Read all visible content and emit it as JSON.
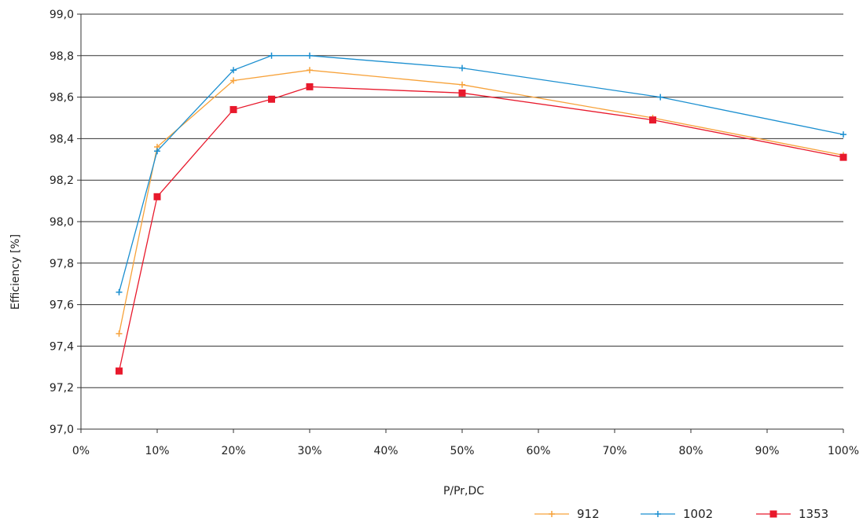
{
  "chart_data": {
    "type": "line",
    "title": "",
    "xlabel": "P/Pr,DC",
    "ylabel": "Efficiency [%]",
    "xlim": [
      0,
      1
    ],
    "ylim": [
      97.0,
      99.0
    ],
    "x_ticks": [
      {
        "value": 0.0,
        "label": "0%"
      },
      {
        "value": 0.1,
        "label": "10%"
      },
      {
        "value": 0.2,
        "label": "20%"
      },
      {
        "value": 0.3,
        "label": "30%"
      },
      {
        "value": 0.4,
        "label": "40%"
      },
      {
        "value": 0.5,
        "label": "50%"
      },
      {
        "value": 0.6,
        "label": "60%"
      },
      {
        "value": 0.7,
        "label": "70%"
      },
      {
        "value": 0.8,
        "label": "80%"
      },
      {
        "value": 0.9,
        "label": "90%"
      },
      {
        "value": 1.0,
        "label": "100%"
      }
    ],
    "y_ticks": [
      {
        "value": 97.0,
        "label": "97,0"
      },
      {
        "value": 97.2,
        "label": "97,2"
      },
      {
        "value": 97.4,
        "label": "97,4"
      },
      {
        "value": 97.6,
        "label": "97,6"
      },
      {
        "value": 97.8,
        "label": "97,8"
      },
      {
        "value": 98.0,
        "label": "98,0"
      },
      {
        "value": 98.2,
        "label": "98,2"
      },
      {
        "value": 98.4,
        "label": "98,4"
      },
      {
        "value": 98.6,
        "label": "98,6"
      },
      {
        "value": 98.8,
        "label": "98,8"
      },
      {
        "value": 99.0,
        "label": "99,0"
      }
    ],
    "grid": {
      "horizontal": true,
      "vertical": false
    },
    "legend_position": "bottom-right",
    "series": [
      {
        "name": "912",
        "color": "#f7a23a",
        "marker": "plus",
        "points": [
          {
            "x": 0.05,
            "y": 97.46
          },
          {
            "x": 0.1,
            "y": 98.36
          },
          {
            "x": 0.2,
            "y": 98.68
          },
          {
            "x": 0.3,
            "y": 98.73
          },
          {
            "x": 0.5,
            "y": 98.66
          },
          {
            "x": 0.75,
            "y": 98.5
          },
          {
            "x": 1.0,
            "y": 98.32
          }
        ]
      },
      {
        "name": "1002",
        "color": "#1b8fd0",
        "marker": "plus",
        "points": [
          {
            "x": 0.05,
            "y": 97.66
          },
          {
            "x": 0.1,
            "y": 98.34
          },
          {
            "x": 0.2,
            "y": 98.73
          },
          {
            "x": 0.25,
            "y": 98.8
          },
          {
            "x": 0.3,
            "y": 98.8
          },
          {
            "x": 0.5,
            "y": 98.74
          },
          {
            "x": 0.76,
            "y": 98.6
          },
          {
            "x": 1.0,
            "y": 98.42
          }
        ]
      },
      {
        "name": "1353",
        "color": "#e8192c",
        "marker": "square",
        "points": [
          {
            "x": 0.05,
            "y": 97.28
          },
          {
            "x": 0.1,
            "y": 98.12
          },
          {
            "x": 0.2,
            "y": 98.54
          },
          {
            "x": 0.25,
            "y": 98.59
          },
          {
            "x": 0.3,
            "y": 98.65
          },
          {
            "x": 0.5,
            "y": 98.62
          },
          {
            "x": 0.75,
            "y": 98.49
          },
          {
            "x": 1.0,
            "y": 98.31
          }
        ]
      }
    ]
  }
}
